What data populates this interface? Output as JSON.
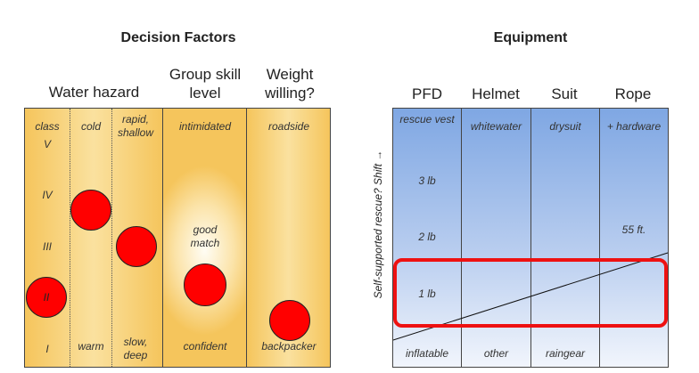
{
  "titles": {
    "decision": "Decision Factors",
    "equipment": "Equipment"
  },
  "decision_columns": {
    "water": "Water hazard",
    "group": "Group skill level",
    "weight": "Weight willing?"
  },
  "water": {
    "class_label": "class",
    "classes": [
      "V",
      "IV",
      "III",
      "II",
      "I"
    ],
    "cold": "cold",
    "warm": "warm",
    "rapid": "rapid, shallow",
    "slow": "slow, deep"
  },
  "group": {
    "top": "intimidated",
    "middle": "good match",
    "bottom": "confident"
  },
  "weight": {
    "top": "roadside",
    "bottom": "backpacker"
  },
  "equipment_columns": [
    "PFD",
    "Helmet",
    "Suit",
    "Rope"
  ],
  "equipment": {
    "pfd": {
      "top": "rescue vest",
      "w3": "3 lb",
      "w2": "2 lb",
      "w1": "1 lb",
      "bottom": "inflatable"
    },
    "helmet": {
      "top": "whitewater",
      "bottom": "other"
    },
    "suit": {
      "top": "drysuit",
      "bottom": "raingear"
    },
    "rope": {
      "top": "+ hardware",
      "length": "55 ft."
    }
  },
  "side_label": "Self-supported rescue? Shift →",
  "colors": {
    "marker": "#ff0000",
    "highlight": "#ee1111",
    "gold": "#f5c55c",
    "blue": "#7fa7e3"
  }
}
